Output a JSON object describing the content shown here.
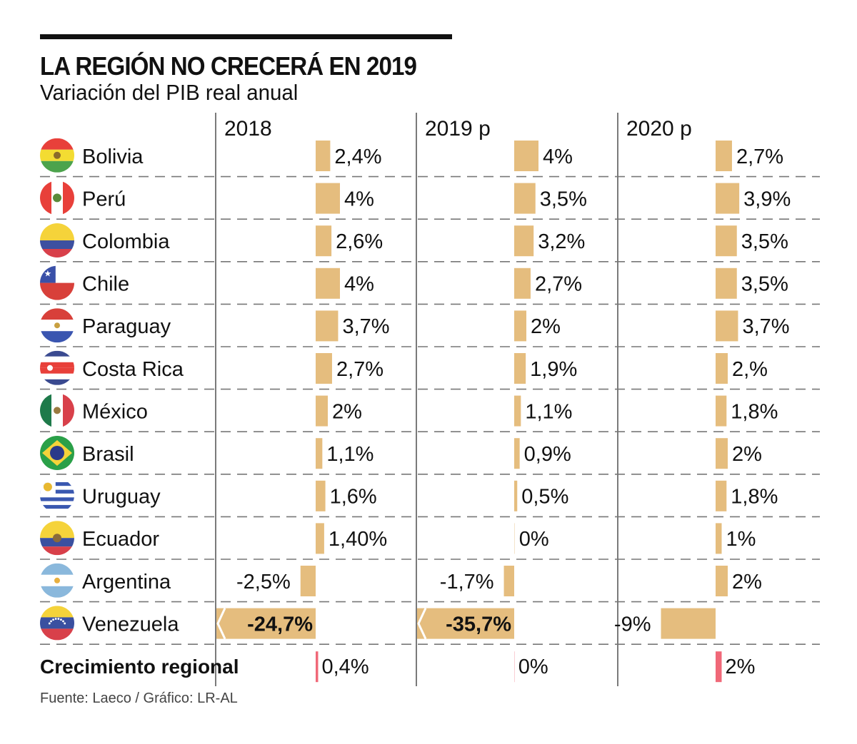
{
  "header": {
    "title": "LA REGIÓN NO CRECERÁ EN 2019",
    "subtitle": "Variación del PIB real anual"
  },
  "footer": {
    "source": "Fuente: Laeco / Gráfico: LR-AL"
  },
  "colors": {
    "bar": "#e5bd7e",
    "regional_bar": "#f06878",
    "gridline": "#777777",
    "divider": "#333333",
    "text": "#111111"
  },
  "chart_data": {
    "type": "bar",
    "orientation": "horizontal",
    "title": "LA REGIÓN NO CRECERÁ EN 2019",
    "subtitle": "Variación del PIB real anual",
    "unit": "%",
    "columns": [
      "2018",
      "2019 p",
      "2020 p"
    ],
    "truncated_note": "Venezuela bars for 2018 and 2019 p are truncated (break marker)",
    "rows": [
      {
        "country": "Bolivia",
        "flag": "bolivia-flag-icon",
        "values": [
          2.4,
          4,
          2.7
        ],
        "labels": [
          "2,4%",
          "4%",
          "2,7%"
        ]
      },
      {
        "country": "Perú",
        "flag": "peru-flag-icon",
        "values": [
          4,
          3.5,
          3.9
        ],
        "labels": [
          "4%",
          "3,5%",
          "3,9%"
        ]
      },
      {
        "country": "Colombia",
        "flag": "colombia-flag-icon",
        "values": [
          2.6,
          3.2,
          3.5
        ],
        "labels": [
          "2,6%",
          "3,2%",
          "3,5%"
        ]
      },
      {
        "country": "Chile",
        "flag": "chile-flag-icon",
        "values": [
          4,
          2.7,
          3.5
        ],
        "labels": [
          "4%",
          "2,7%",
          "3,5%"
        ]
      },
      {
        "country": "Paraguay",
        "flag": "paraguay-flag-icon",
        "values": [
          3.7,
          2,
          3.7
        ],
        "labels": [
          "3,7%",
          "2%",
          "3,7%"
        ]
      },
      {
        "country": "Costa Rica",
        "flag": "costa-rica-flag-icon",
        "values": [
          2.7,
          1.9,
          2
        ],
        "labels": [
          "2,7%",
          "1,9%",
          "2,%"
        ]
      },
      {
        "country": "México",
        "flag": "mexico-flag-icon",
        "values": [
          2,
          1.1,
          1.8
        ],
        "labels": [
          "2%",
          "1,1%",
          "1,8%"
        ]
      },
      {
        "country": "Brasil",
        "flag": "brasil-flag-icon",
        "values": [
          1.1,
          0.9,
          2
        ],
        "labels": [
          "1,1%",
          "0,9%",
          "2%"
        ]
      },
      {
        "country": "Uruguay",
        "flag": "uruguay-flag-icon",
        "values": [
          1.6,
          0.5,
          1.8
        ],
        "labels": [
          "1,6%",
          "0,5%",
          "1,8%"
        ]
      },
      {
        "country": "Ecuador",
        "flag": "ecuador-flag-icon",
        "values": [
          1.4,
          0,
          1
        ],
        "labels": [
          "1,40%",
          "0%",
          "1%"
        ]
      },
      {
        "country": "Argentina",
        "flag": "argentina-flag-icon",
        "values": [
          -2.5,
          -1.7,
          2
        ],
        "labels": [
          "-2,5%",
          "-1,7%",
          "2%"
        ]
      },
      {
        "country": "Venezuela",
        "flag": "venezuela-flag-icon",
        "values": [
          -24.7,
          -35.7,
          -9
        ],
        "labels": [
          "-24,7%",
          "-35,7%",
          "-9%"
        ],
        "truncated": [
          true,
          true,
          false
        ]
      }
    ],
    "regional": {
      "label": "Crecimiento regional",
      "values": [
        0.4,
        0,
        2
      ],
      "labels": [
        "0,4%",
        "0%",
        "2%"
      ]
    }
  }
}
